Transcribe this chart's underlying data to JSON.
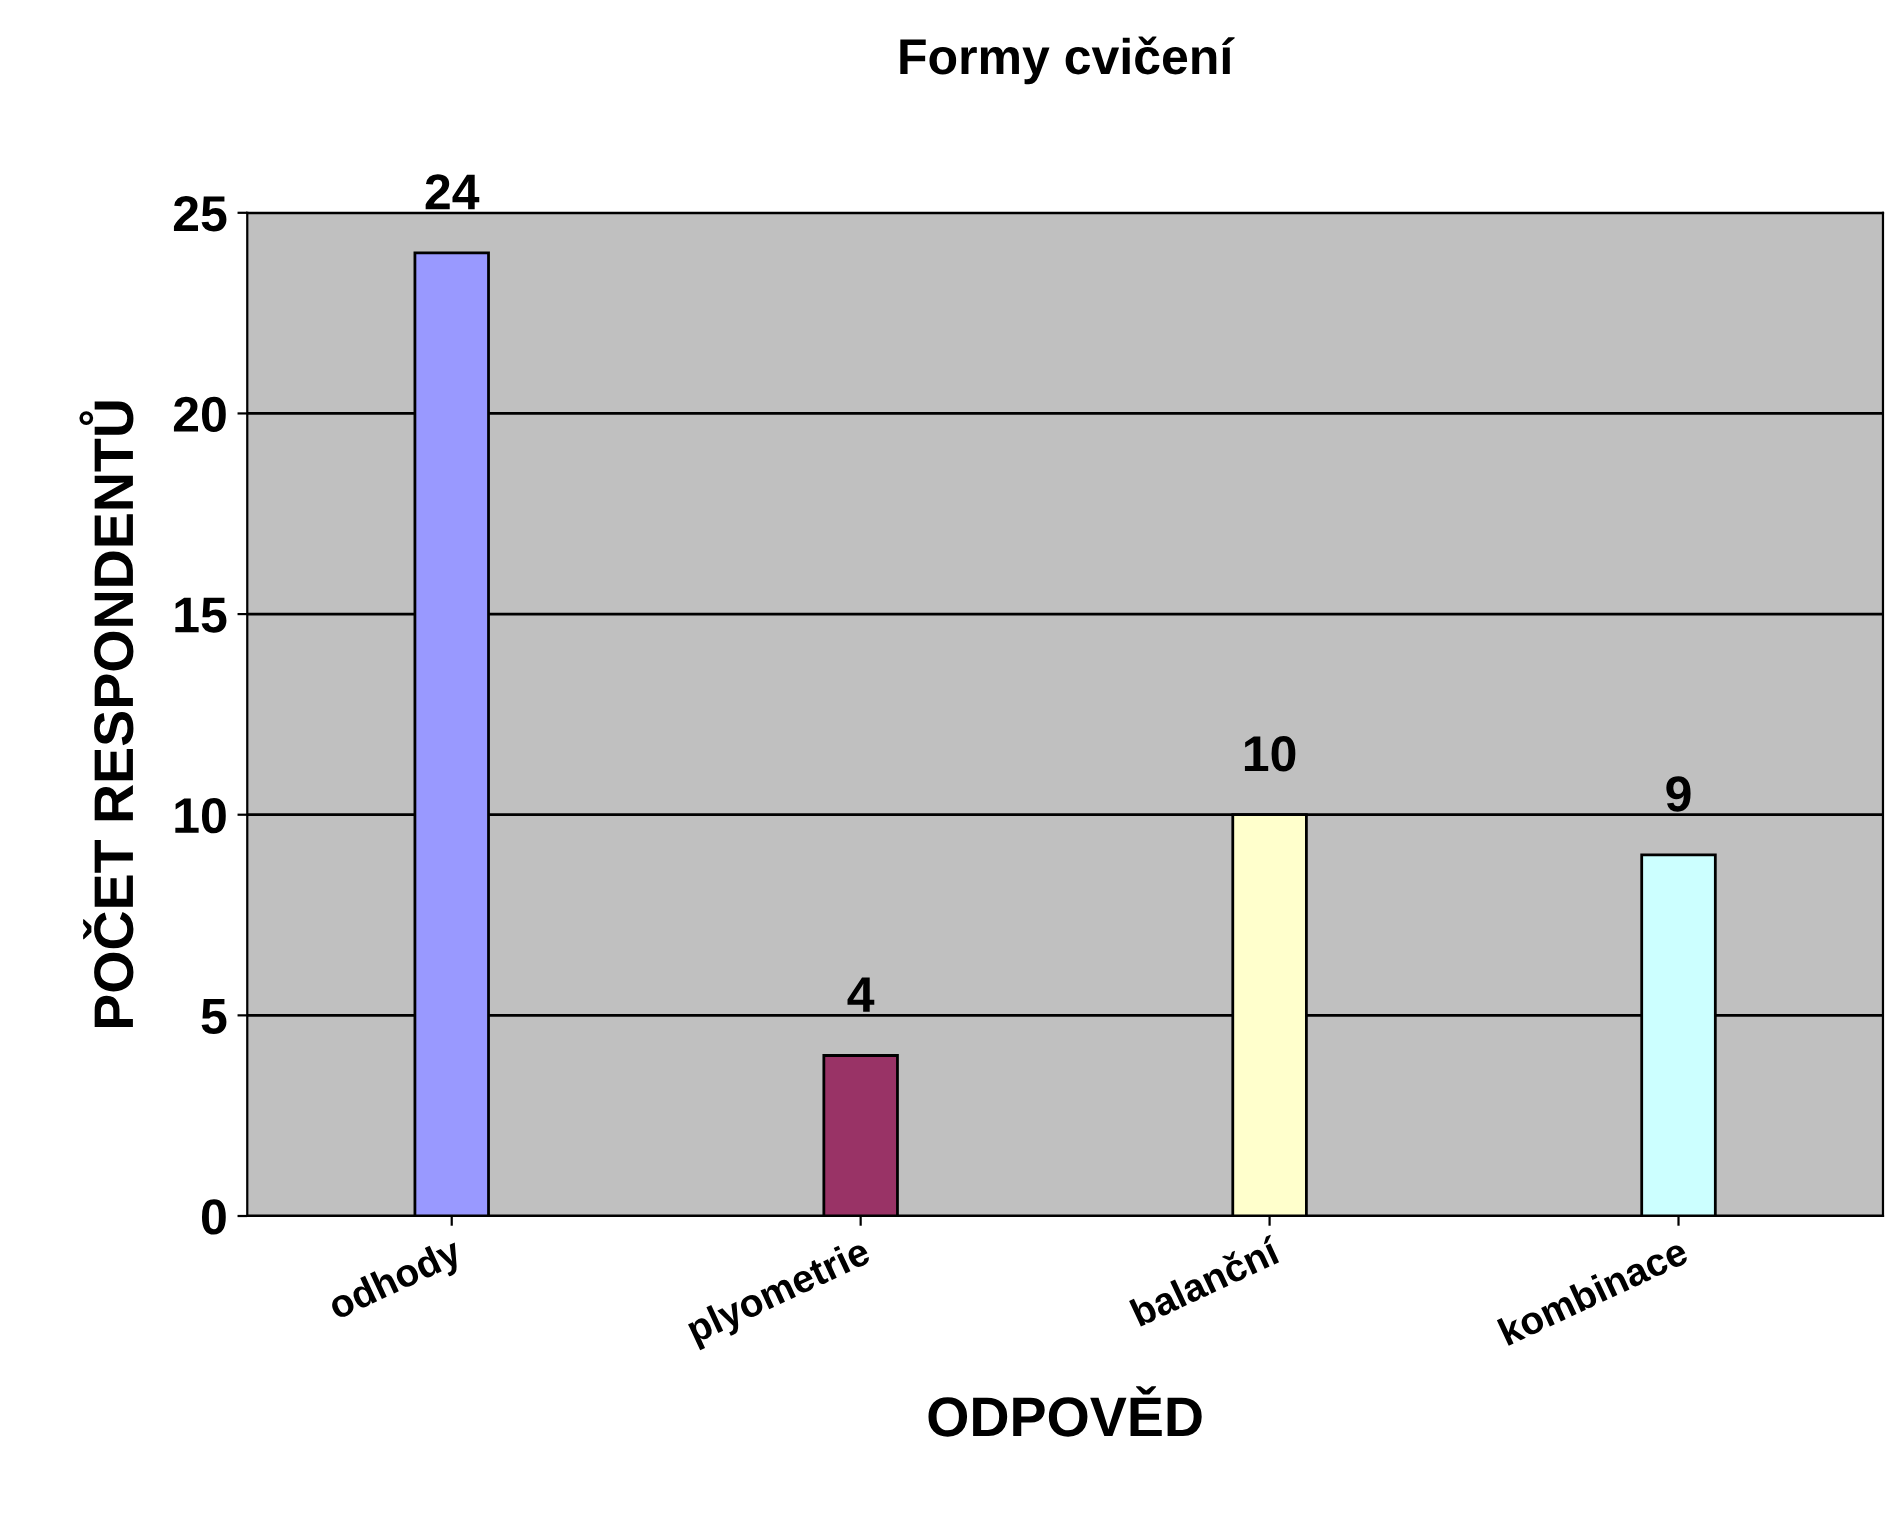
{
  "chart_data": {
    "type": "bar",
    "title": "Formy cvičení",
    "xlabel": "ODPOVĚD",
    "ylabel": "POČET RESPONDENTŮ",
    "categories": [
      "odhody",
      "plyometrie",
      "balanční",
      "kombinace"
    ],
    "values": [
      24,
      4,
      10,
      9
    ],
    "colors": [
      "#9999ff",
      "#993366",
      "#ffffcc",
      "#ccffff"
    ],
    "ylim": [
      0,
      25
    ],
    "yticks": [
      0,
      5,
      10,
      15,
      20,
      25
    ],
    "grid": "y",
    "data_labels": true
  }
}
